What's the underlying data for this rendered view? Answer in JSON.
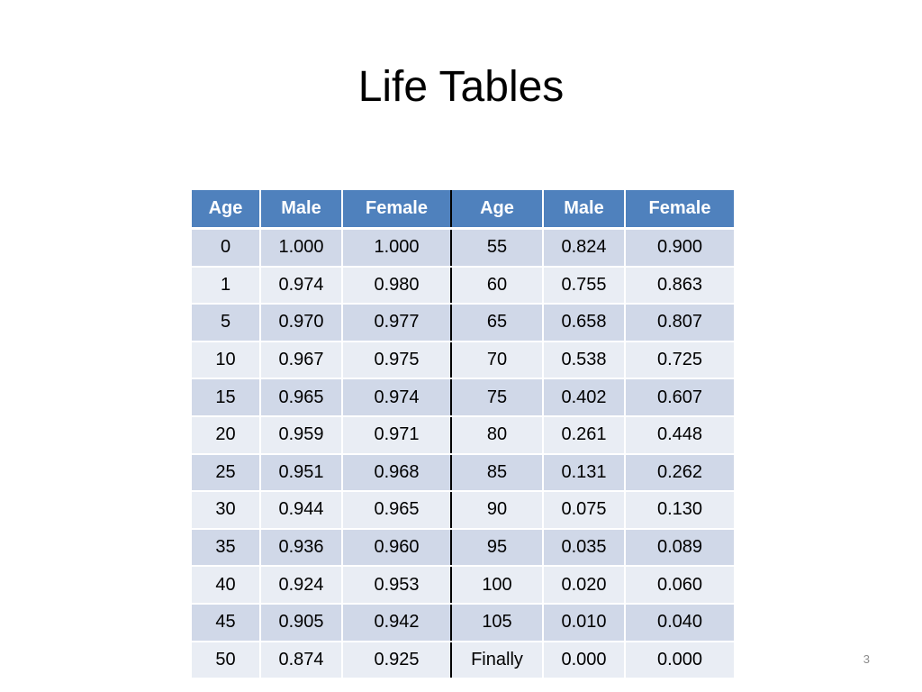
{
  "slide": {
    "title": "Life Tables",
    "page_number": "3"
  },
  "table": {
    "headers": [
      "Age",
      "Male",
      "Female",
      "Age",
      "Male",
      "Female"
    ],
    "rows": [
      [
        "0",
        "1.000",
        "1.000",
        "55",
        "0.824",
        "0.900"
      ],
      [
        "1",
        "0.974",
        "0.980",
        "60",
        "0.755",
        "0.863"
      ],
      [
        "5",
        "0.970",
        "0.977",
        "65",
        "0.658",
        "0.807"
      ],
      [
        "10",
        "0.967",
        "0.975",
        "70",
        "0.538",
        "0.725"
      ],
      [
        "15",
        "0.965",
        "0.974",
        "75",
        "0.402",
        "0.607"
      ],
      [
        "20",
        "0.959",
        "0.971",
        "80",
        "0.261",
        "0.448"
      ],
      [
        "25",
        "0.951",
        "0.968",
        "85",
        "0.131",
        "0.262"
      ],
      [
        "30",
        "0.944",
        "0.965",
        "90",
        "0.075",
        "0.130"
      ],
      [
        "35",
        "0.936",
        "0.960",
        "95",
        "0.035",
        "0.089"
      ],
      [
        "40",
        "0.924",
        "0.953",
        "100",
        "0.020",
        "0.060"
      ],
      [
        "45",
        "0.905",
        "0.942",
        "105",
        "0.010",
        "0.040"
      ],
      [
        "50",
        "0.874",
        "0.925",
        "Finally",
        "0.000",
        "0.000"
      ]
    ]
  },
  "colors": {
    "header_background": "#4f81bd",
    "row_band_dark": "#d0d8e8",
    "row_band_light": "#e9edf4"
  }
}
